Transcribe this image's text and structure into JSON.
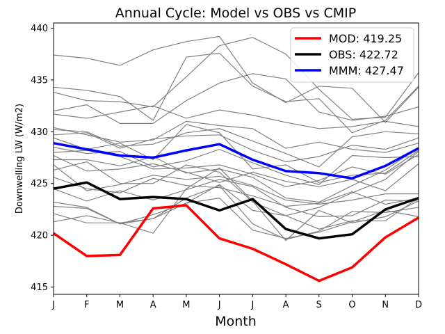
{
  "chart_data": {
    "type": "line",
    "title": "Annual Cycle: Model vs OBS vs CMIP",
    "xlabel": "Month",
    "ylabel": "Downwelling LW (W/m2)",
    "categories": [
      "J",
      "F",
      "M",
      "A",
      "M",
      "J",
      "J",
      "A",
      "S",
      "O",
      "N",
      "D"
    ],
    "ylim": [
      414.3,
      440.5
    ],
    "yticks": [
      415,
      420,
      425,
      430,
      435,
      440
    ],
    "legend_position": "top-right",
    "colors": {
      "MOD": "#ff0000",
      "OBS": "#000000",
      "MMM": "#0000ff",
      "CMIP": "#808080"
    },
    "series": [
      {
        "name": "MOD: 419.25",
        "key": "MOD",
        "values": [
          420.2,
          418.0,
          418.1,
          422.6,
          422.9,
          419.7,
          418.7,
          417.2,
          415.6,
          416.9,
          419.8,
          421.7
        ]
      },
      {
        "name": "OBS: 422.72",
        "key": "OBS",
        "values": [
          424.5,
          425.1,
          423.5,
          423.7,
          423.5,
          422.4,
          423.5,
          420.6,
          419.7,
          420.1,
          422.5,
          423.6
        ]
      },
      {
        "name": "MMM: 427.47",
        "key": "MMM",
        "values": [
          428.9,
          428.3,
          427.7,
          427.5,
          428.2,
          428.8,
          427.3,
          426.2,
          426.0,
          425.5,
          426.7,
          428.4
        ]
      }
    ],
    "cmip_series": [
      [
        437.4,
        437.1,
        436.4,
        437.9,
        438.7,
        439.2,
        434.7,
        432.8,
        434.4,
        434.2,
        430.9,
        434.3
      ],
      [
        434.3,
        434.0,
        433.4,
        431.1,
        437.2,
        437.6,
        434.4,
        432.9,
        433.2,
        429.9,
        431.1,
        434.4
      ],
      [
        433.8,
        433.0,
        432.9,
        432.4,
        435.3,
        438.3,
        439.1,
        437.5,
        434.1,
        431.2,
        431.4,
        435.7
      ],
      [
        432.0,
        432.6,
        430.8,
        430.8,
        433.0,
        434.7,
        435.6,
        435.1,
        431.9,
        431.1,
        431.5,
        432.4
      ],
      [
        431.7,
        431.3,
        431.9,
        432.5,
        431.3,
        432.1,
        431.6,
        430.9,
        430.3,
        430.5,
        431.0,
        430.5
      ],
      [
        430.4,
        429.7,
        429.0,
        429.2,
        431.0,
        430.6,
        430.3,
        428.4,
        429.0,
        428.3,
        428.0,
        428.9
      ],
      [
        430.2,
        430.0,
        428.6,
        428.8,
        429.9,
        430.3,
        429.1,
        427.9,
        426.6,
        429.5,
        430.0,
        429.8
      ],
      [
        429.7,
        429.9,
        428.4,
        429.3,
        429.6,
        429.7,
        428.2,
        427.1,
        427.6,
        428.7,
        428.3,
        429.4
      ],
      [
        429.4,
        428.3,
        428.9,
        427.3,
        430.7,
        429.9,
        426.4,
        426.8,
        425.1,
        425.8,
        426.0,
        428.2
      ],
      [
        428.5,
        427.9,
        428.1,
        426.6,
        427.2,
        428.3,
        427.0,
        425.8,
        424.9,
        427.7,
        427.5,
        427.6
      ],
      [
        428.0,
        428.2,
        427.6,
        426.4,
        426.5,
        426.8,
        425.9,
        424.7,
        425.3,
        426.6,
        425.9,
        427.8
      ],
      [
        427.3,
        427.3,
        426.7,
        427.6,
        426.0,
        426.4,
        425.6,
        423.6,
        423.2,
        424.8,
        426.3,
        428.5
      ],
      [
        426.3,
        427.1,
        425.0,
        425.0,
        426.8,
        426.1,
        423.2,
        421.9,
        422.7,
        424.1,
        425.4,
        428.1
      ],
      [
        427.7,
        426.2,
        426.4,
        426.9,
        426.1,
        425.1,
        426.1,
        425.2,
        424.7,
        425.4,
        424.3,
        426.9
      ],
      [
        426.8,
        424.3,
        424.9,
        425.8,
        425.4,
        425.7,
        424.8,
        423.4,
        423.0,
        423.4,
        424.0,
        424.0
      ],
      [
        425.6,
        424.5,
        424.1,
        425.5,
        424.8,
        424.6,
        423.8,
        422.8,
        423.1,
        424.2,
        423.0,
        423.6
      ],
      [
        424.5,
        423.3,
        424.3,
        423.4,
        424.4,
        425.4,
        424.7,
        422.7,
        421.8,
        421.9,
        423.4,
        423.3
      ],
      [
        423.2,
        422.7,
        421.1,
        421.6,
        423.6,
        424.8,
        421.1,
        419.6,
        420.4,
        422.3,
        422.2,
        422.7
      ],
      [
        422.8,
        422.6,
        421.1,
        422.0,
        423.1,
        424.9,
        422.4,
        421.9,
        420.6,
        421.4,
        421.4,
        423.6
      ],
      [
        421.3,
        421.9,
        421.2,
        420.2,
        424.5,
        426.5,
        423.3,
        419.5,
        422.4,
        421.2,
        421.8,
        423.3
      ],
      [
        422.1,
        421.2,
        421.2,
        421.6,
        423.1,
        423.6,
        420.5,
        419.7,
        420.3,
        421.3,
        422.4,
        421.8
      ]
    ]
  }
}
